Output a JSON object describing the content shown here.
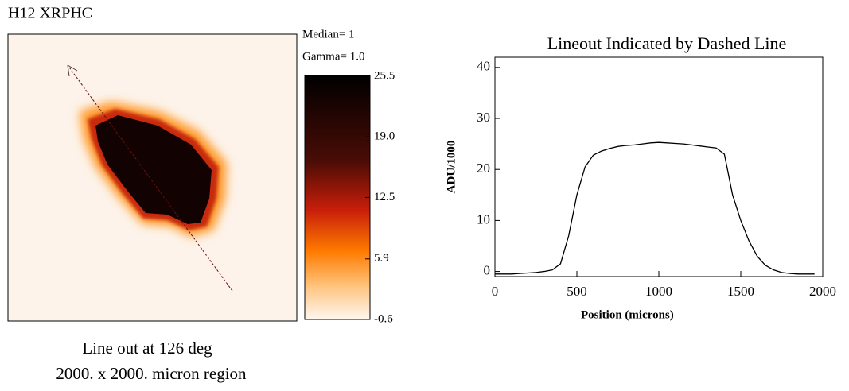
{
  "chart_data": [
    {
      "type": "image",
      "title": "H12 XRPHC",
      "annotations": [
        "Median= 1",
        "Gamma= 1.0"
      ],
      "caption": [
        "Line out at 126 deg",
        "2000. x 2000. micron region"
      ],
      "clim": [
        -0.6,
        25.5
      ],
      "cticks": [
        25.5,
        {
          "value": 19,
          "label": "19.0"
        },
        12.5,
        5.9,
        -0.6
      ]
    },
    {
      "type": "line",
      "title": "Lineout Indicated by Dashed Line",
      "xlabel": "Position (microns)",
      "ylabel": "ADU/1000",
      "color": "#000000",
      "x": [
        0,
        50,
        100,
        150,
        200,
        250,
        300,
        350,
        400,
        450,
        500,
        550,
        600,
        650,
        700,
        750,
        800,
        850,
        900,
        950,
        1000,
        1050,
        1100,
        1150,
        1200,
        1250,
        1300,
        1350,
        1400,
        1450,
        1500,
        1550,
        1600,
        1650,
        1700,
        1750,
        1800,
        1850,
        1900,
        1950
      ],
      "values": [
        -0.5,
        -0.5,
        -0.5,
        -0.4,
        -0.3,
        -0.2,
        0,
        0.3,
        1.5,
        7,
        15,
        20.5,
        22.8,
        23.6,
        24.1,
        24.5,
        24.7,
        24.8,
        25,
        25.2,
        25.3,
        25.2,
        25.1,
        25,
        24.8,
        24.6,
        24.4,
        24.2,
        23,
        15,
        10,
        6,
        3,
        1.2,
        0.3,
        -0.2,
        -0.4,
        -0.5,
        -0.5,
        -0.5
      ],
      "xlim": [
        0,
        2000
      ],
      "ylim": [
        -1,
        42
      ],
      "xticks": [
        0,
        500,
        1000,
        1500,
        2000
      ],
      "yticks": [
        0,
        10,
        20,
        30,
        40
      ]
    }
  ]
}
